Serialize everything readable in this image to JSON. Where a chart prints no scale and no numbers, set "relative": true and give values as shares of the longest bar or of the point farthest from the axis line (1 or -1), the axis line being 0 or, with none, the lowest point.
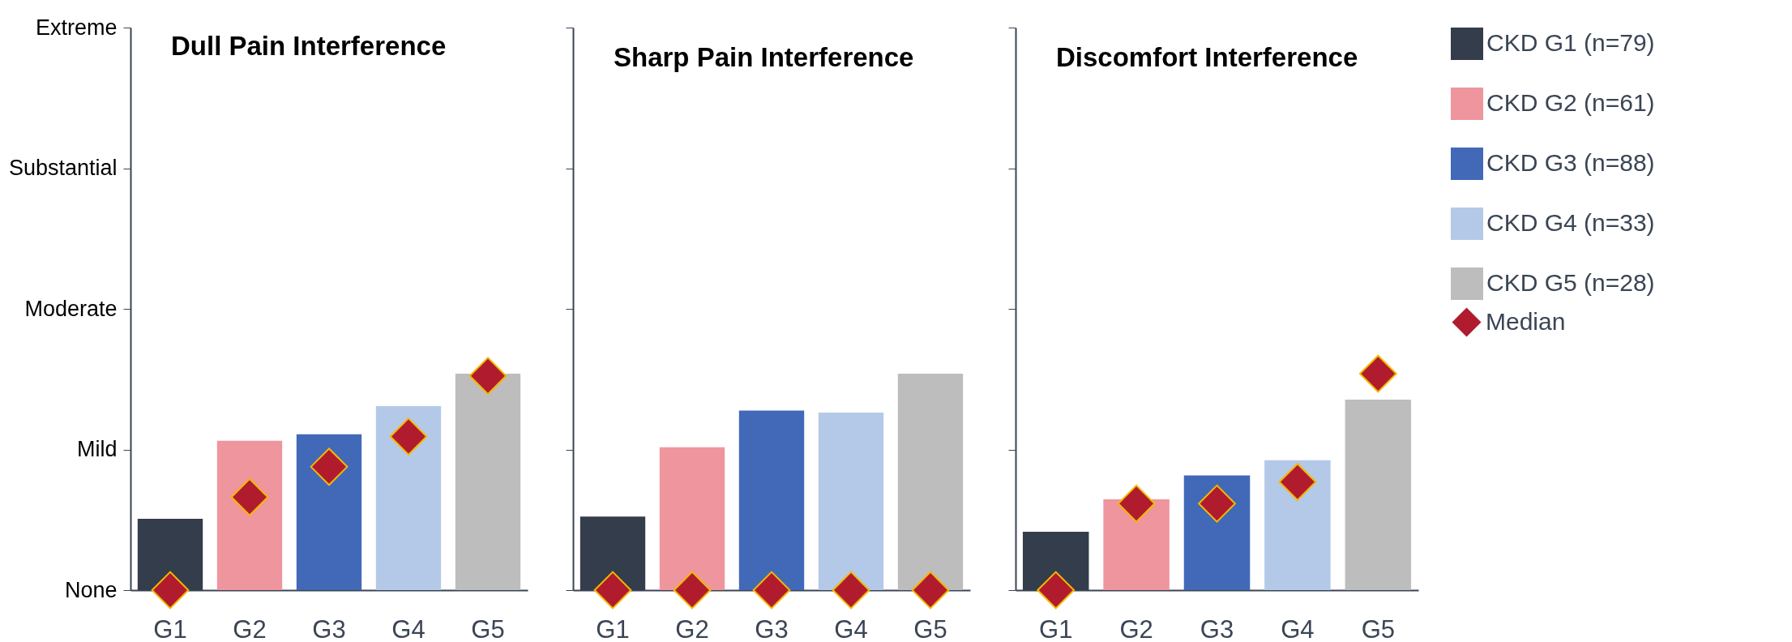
{
  "chart_data": [
    {
      "type": "bar",
      "title": "Dull Pain Interference",
      "categories": [
        "G1",
        "G2",
        "G3",
        "G4",
        "G5"
      ],
      "relative": true,
      "legend": false,
      "marker": "diamond",
      "annotations": [
        "None",
        "Mild",
        "Moderate",
        "Substantial",
        "Extreme"
      ],
      "series": [
        {
          "color": "#343d4b",
          "values": [
            0.33,
            null,
            null,
            null,
            null
          ]
        },
        {
          "color": "#ee959e",
          "values": [
            null,
            0.69,
            null,
            null,
            null
          ]
        },
        {
          "color": "#4169b8",
          "values": [
            null,
            null,
            0.72,
            null,
            null
          ]
        },
        {
          "color": "#b4c9e8",
          "values": [
            null,
            null,
            null,
            0.85,
            null
          ]
        },
        {
          "color": "#bdbdbd",
          "values": [
            null,
            null,
            null,
            null,
            1
          ]
        },
        {
          "type": "scatter",
          "color": "#b01c2e",
          "values": [
            0,
            0.43,
            0.57,
            0.71,
            0.99
          ]
        }
      ]
    },
    {
      "type": "bar",
      "title": "Sharp Pain Interference",
      "categories": [
        "G1",
        "G2",
        "G3",
        "G4",
        "G5"
      ],
      "relative": true,
      "legend": false,
      "marker": "diamond",
      "tick_labels": "x",
      "series": [
        {
          "color": "#343d4b",
          "values": [
            0.34,
            null,
            null,
            null,
            null
          ]
        },
        {
          "color": "#ee959e",
          "values": [
            null,
            0.66,
            null,
            null,
            null
          ]
        },
        {
          "color": "#4169b8",
          "values": [
            null,
            null,
            0.83,
            null,
            null
          ]
        },
        {
          "color": "#b4c9e8",
          "values": [
            null,
            null,
            null,
            0.82,
            null
          ]
        },
        {
          "color": "#bdbdbd",
          "values": [
            null,
            null,
            null,
            null,
            1
          ]
        },
        {
          "type": "scatter",
          "color": "#b01c2e",
          "values": [
            0,
            0,
            0,
            0,
            0
          ]
        }
      ]
    },
    {
      "type": "bar",
      "title": "Discomfort Interference",
      "categories": [
        "G1",
        "G2",
        "G3",
        "G4",
        "G5"
      ],
      "relative": true,
      "legend": "right",
      "marker": "diamond",
      "tick_labels": "x",
      "series": [
        {
          "name": "CKD G1 (n=79)",
          "color": "#343d4b",
          "values": [
            0.27,
            null,
            null,
            null,
            null
          ]
        },
        {
          "name": "CKD G2 (n=61)",
          "color": "#ee959e",
          "values": [
            null,
            0.42,
            null,
            null,
            null
          ]
        },
        {
          "name": "CKD G3 (n=88)",
          "color": "#4169b8",
          "values": [
            null,
            null,
            0.53,
            null,
            null
          ]
        },
        {
          "name": "CKD G4 (n=33)",
          "color": "#b4c9e8",
          "values": [
            null,
            null,
            null,
            0.6,
            null
          ]
        },
        {
          "name": "CKD G5 (n=28)",
          "color": "#bdbdbd",
          "values": [
            null,
            null,
            null,
            null,
            0.88
          ]
        },
        {
          "name": "Median",
          "type": "scatter",
          "color": "#b01c2e",
          "values": [
            0,
            0.4,
            0.4,
            0.5,
            1
          ]
        }
      ]
    }
  ]
}
